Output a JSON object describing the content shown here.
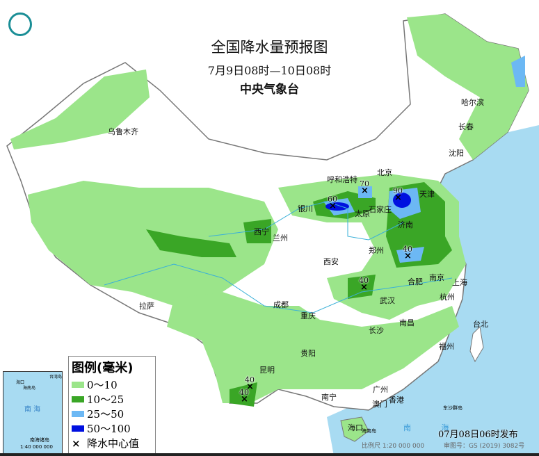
{
  "title": "全国降水量预报图",
  "subtitle": "7月9日08时—10日08时",
  "issuer": "中央气象台",
  "logo": "cma-logo",
  "cities": [
    "乌鲁木齐",
    "哈尔滨",
    "长春",
    "沈阳",
    "呼和浩特",
    "北京",
    "天津",
    "银川",
    "太原",
    "石家庄",
    "济南",
    "西宁",
    "兰州",
    "郑州",
    "西安",
    "合肥",
    "南京",
    "上海",
    "武汉",
    "杭州",
    "成都",
    "重庆",
    "长沙",
    "南昌",
    "拉萨",
    "贵阳",
    "福州",
    "台北",
    "昆明",
    "南宁",
    "广州",
    "澳门",
    "香港",
    "海口"
  ],
  "rain_centers": [
    "70",
    "60",
    "90",
    "40",
    "40",
    "40",
    "40"
  ],
  "sea_labels": [
    "海",
    "海",
    "黄",
    "海",
    "东",
    "海",
    "南",
    "海"
  ],
  "legend": {
    "title": "图例(毫米)",
    "items": [
      {
        "label": "0～10",
        "color": "#9be58a"
      },
      {
        "label": "10～25",
        "color": "#3aa626"
      },
      {
        "label": "25～50",
        "color": "#6cb8f4"
      },
      {
        "label": "50～100",
        "color": "#0010e0"
      }
    ],
    "center_label": "降水中心值",
    "center_symbol": "×"
  },
  "inset": {
    "sea": "南 海",
    "islands": "南海诸岛",
    "scale": "1:40 000 000",
    "labels": [
      "海口",
      "海南岛",
      "台湾岛"
    ]
  },
  "footer": {
    "issued": "07月08日06时发布",
    "scale": "比例尺 1:20 000 000",
    "approval": "审图号：GS (2019) 3082号",
    "south_sea": "南 海",
    "hainan": "海南岛",
    "dongsha": "东沙群岛"
  },
  "colors": {
    "sea": "#a8dbf2",
    "light_rain": "#9be58a",
    "moderate_rain": "#3aa626",
    "heavy_rain": "#6cb8f4",
    "storm": "#0010e0"
  }
}
